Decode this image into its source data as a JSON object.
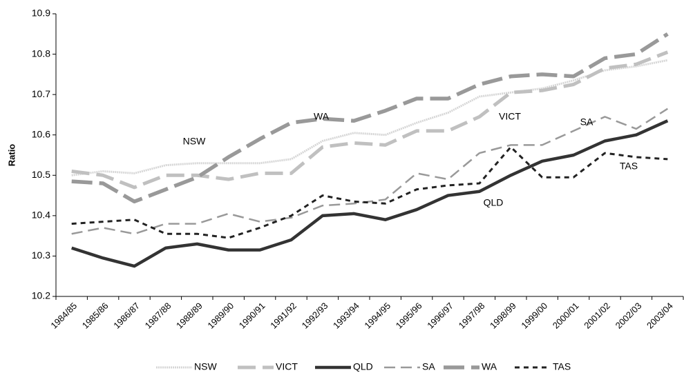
{
  "chart_data": {
    "type": "line",
    "y_label": "Ratio",
    "categories": [
      "1984/85",
      "1985/86",
      "1986/87",
      "1987/88",
      "1988/89",
      "1989/90",
      "1990/91",
      "1991/92",
      "1992/93",
      "1993/94",
      "1994/95",
      "1995/96",
      "1996/97",
      "1997/98",
      "1998/99",
      "1999/00",
      "2000/01",
      "2001/02",
      "2002/03",
      "2003/04"
    ],
    "series": [
      {
        "name": "NSW",
        "color": "#d6d6d6",
        "values": [
          10.5,
          10.51,
          10.505,
          10.525,
          10.53,
          10.53,
          10.53,
          10.54,
          10.585,
          10.605,
          10.6,
          10.63,
          10.655,
          10.695,
          10.705,
          10.715,
          10.735,
          10.76,
          10.77,
          10.785
        ]
      },
      {
        "name": "VICT",
        "color": "#c0c0c0",
        "values": [
          10.51,
          10.5,
          10.47,
          10.5,
          10.5,
          10.49,
          10.505,
          10.505,
          10.57,
          10.58,
          10.575,
          10.61,
          10.61,
          10.645,
          10.705,
          10.71,
          10.725,
          10.765,
          10.775,
          10.805
        ]
      },
      {
        "name": "QLD",
        "color": "#333333",
        "values": [
          10.32,
          10.295,
          10.275,
          10.32,
          10.33,
          10.315,
          10.315,
          10.34,
          10.4,
          10.405,
          10.39,
          10.415,
          10.45,
          10.46,
          10.5,
          10.535,
          10.55,
          10.585,
          10.6,
          10.635
        ]
      },
      {
        "name": "SA",
        "color": "#999999",
        "values": [
          10.355,
          10.37,
          10.355,
          10.38,
          10.38,
          10.405,
          10.385,
          10.395,
          10.425,
          10.43,
          10.44,
          10.505,
          10.49,
          10.555,
          10.575,
          10.575,
          10.61,
          10.645,
          10.615,
          10.665
        ]
      },
      {
        "name": "WA",
        "color": "#999999",
        "values": [
          10.485,
          10.48,
          10.435,
          10.465,
          10.495,
          10.545,
          10.59,
          10.63,
          10.64,
          10.635,
          10.66,
          10.69,
          10.69,
          10.725,
          10.745,
          10.75,
          10.745,
          10.79,
          10.8,
          10.85
        ]
      },
      {
        "name": "TAS",
        "color": "#222222",
        "values": [
          10.38,
          10.385,
          10.39,
          10.355,
          10.355,
          10.345,
          10.37,
          10.4,
          10.45,
          10.435,
          10.43,
          10.465,
          10.475,
          10.48,
          10.57,
          10.495,
          10.495,
          10.555,
          10.545,
          10.54
        ]
      }
    ],
    "annotations": [
      "NSW",
      "WA",
      "VICT",
      "SA",
      "TAS",
      "QLD"
    ],
    "ylim": [
      10.2,
      10.9
    ],
    "yticks": [
      10.2,
      10.3,
      10.4,
      10.5,
      10.6,
      10.7,
      10.8,
      10.9
    ],
    "grid": false,
    "legend": "bottom"
  }
}
